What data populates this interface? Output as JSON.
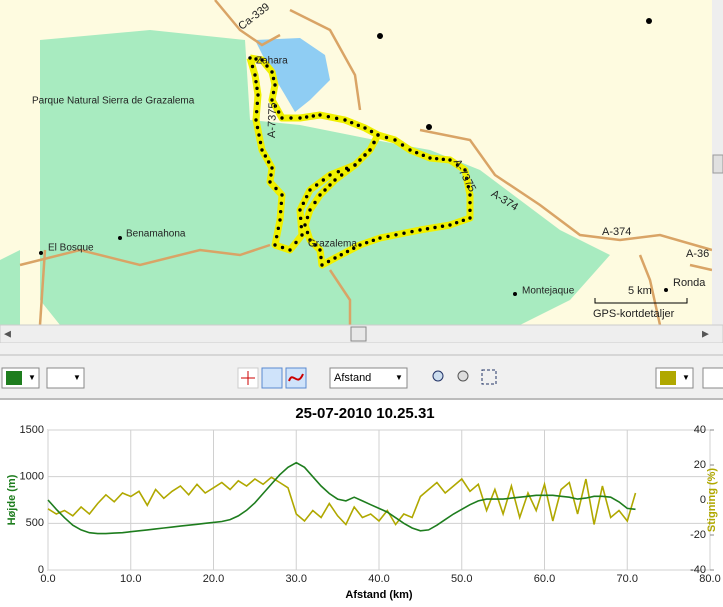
{
  "map": {
    "labels": [
      "Ca-339",
      "Zahara",
      "Parque Natural Sierra de Grazalema",
      "A-7375",
      "A-7375",
      "A-374",
      "A-374",
      "A-36",
      "Benamahona",
      "El Bosque",
      "Grazalema",
      "Montejaque",
      "Ronda",
      "5 km",
      "GPS-kortdetaljer"
    ]
  },
  "toolbar": {
    "dropdown": "Afstand"
  },
  "chart_data": {
    "type": "line",
    "title": "25-07-2010 10.25.31",
    "xlabel": "Afstand (km)",
    "ylabel": "Højde (m)",
    "y2label": "Stigning (%)",
    "grid": true,
    "x": [
      0,
      1,
      2,
      3,
      4,
      5,
      6,
      7,
      8,
      9,
      10,
      11,
      12,
      13,
      14,
      15,
      16,
      17,
      18,
      19,
      20,
      21,
      22,
      23,
      24,
      25,
      26,
      27,
      28,
      29,
      30,
      31,
      32,
      33,
      34,
      35,
      36,
      37,
      38,
      39,
      40,
      41,
      42,
      43,
      44,
      45,
      46,
      47,
      48,
      49,
      50,
      51,
      52,
      53,
      54,
      55,
      56,
      57,
      58,
      59,
      60,
      61,
      62,
      63,
      64,
      65,
      66,
      67,
      68,
      69,
      70,
      71
    ],
    "xlim": [
      0,
      80
    ],
    "xticks": [
      {
        "value": 0,
        "label": "0.0"
      },
      {
        "value": 10,
        "label": "10.0"
      },
      {
        "value": 20,
        "label": "20.0"
      },
      {
        "value": 30,
        "label": "30.0"
      },
      {
        "value": 40,
        "label": "40.0"
      },
      {
        "value": 50,
        "label": "50.0"
      },
      {
        "value": 60,
        "label": "60.0"
      },
      {
        "value": 70,
        "label": "70.0"
      },
      {
        "value": 80,
        "label": "80.0"
      }
    ],
    "ylim": [
      0,
      1500
    ],
    "yticks": [
      0,
      500,
      1000,
      1500
    ],
    "y2lim": [
      -40,
      40
    ],
    "y2ticks": [
      -40,
      -20,
      0,
      20,
      40
    ],
    "series": [
      {
        "name": "Højde",
        "color": "#1e7d1e",
        "values": [
          750,
          650,
          560,
          480,
          430,
          400,
          390,
          390,
          395,
          400,
          410,
          420,
          430,
          440,
          450,
          460,
          470,
          480,
          490,
          500,
          510,
          520,
          540,
          580,
          640,
          720,
          820,
          920,
          1020,
          1100,
          1150,
          1100,
          1000,
          900,
          820,
          760,
          740,
          780,
          740,
          700,
          660,
          620,
          560,
          500,
          450,
          420,
          430,
          480,
          540,
          600,
          650,
          700,
          740,
          760,
          760,
          760,
          770,
          780,
          790,
          800,
          800,
          800,
          790,
          780,
          760,
          770,
          790,
          790,
          780,
          730,
          660,
          650
        ]
      },
      {
        "name": "Stigning",
        "color": "#b0a800",
        "axis": "y2",
        "values": [
          -5,
          -8,
          -6,
          -9,
          -4,
          -8,
          -2,
          3,
          -1,
          4,
          2,
          5,
          -3,
          6,
          1,
          5,
          8,
          3,
          9,
          4,
          7,
          10,
          6,
          11,
          8,
          12,
          9,
          13,
          10,
          7,
          -8,
          -12,
          -6,
          -10,
          -2,
          -9,
          -14,
          -4,
          -10,
          -8,
          -12,
          -6,
          -14,
          -8,
          -10,
          2,
          6,
          10,
          4,
          8,
          12,
          5,
          9,
          -6,
          6,
          -8,
          8,
          -10,
          4,
          -6,
          9,
          -12,
          6,
          10,
          -8,
          12,
          -14,
          8,
          -10,
          -6,
          -12,
          4
        ]
      }
    ]
  }
}
